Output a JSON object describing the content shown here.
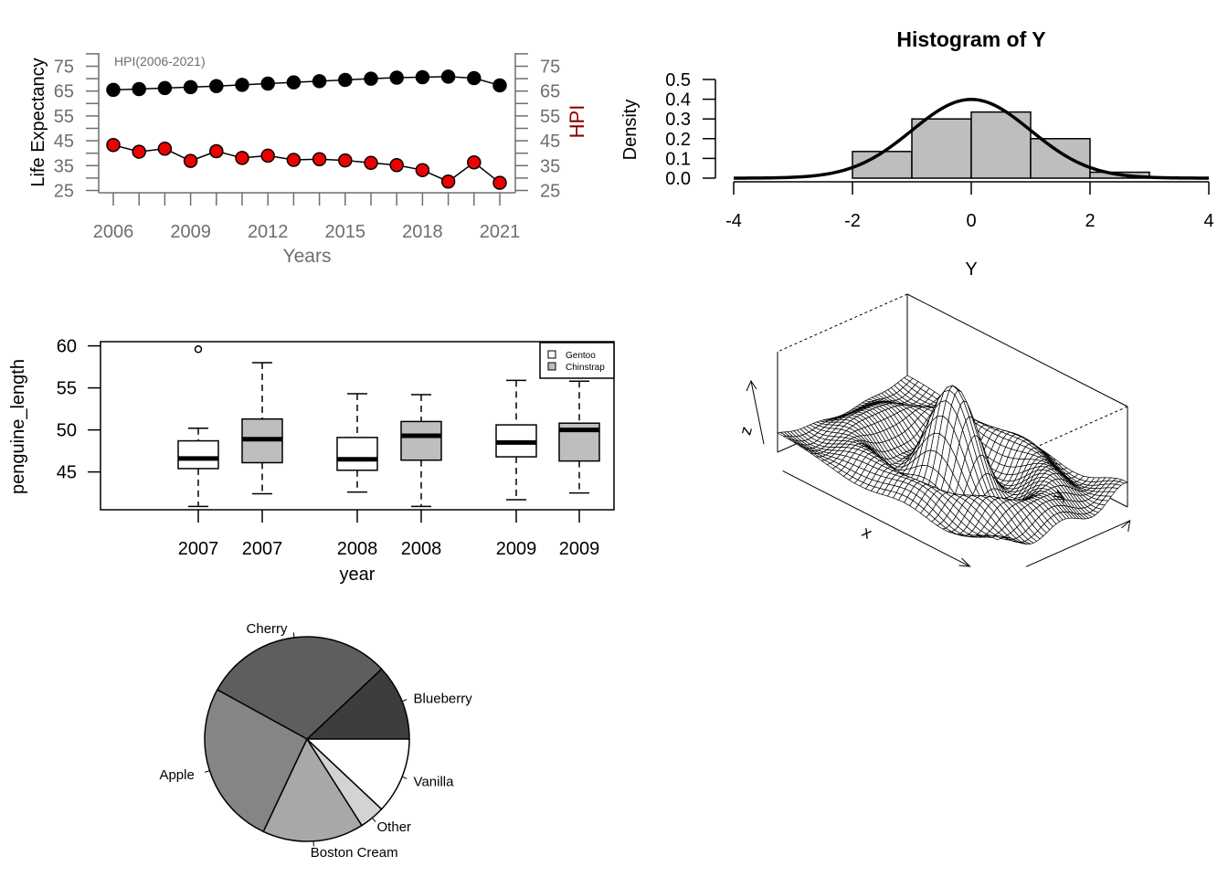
{
  "chart_data": [
    {
      "type": "line",
      "annotation": "HPI(2006-2021)",
      "xlabel": "Years",
      "ylabel": "Life Expectancy",
      "ylabel_right": "HPI",
      "xlim": [
        2006,
        2021
      ],
      "ylim": [
        25,
        75
      ],
      "xticks": [
        "2006",
        "2009",
        "2012",
        "2015",
        "2018",
        "2021"
      ],
      "yticks": [
        "25",
        "35",
        "45",
        "55",
        "65",
        "75"
      ],
      "yticks_right": [
        "25",
        "35",
        "45",
        "55",
        "65",
        "75"
      ],
      "x": [
        2006,
        2007,
        2008,
        2009,
        2010,
        2011,
        2012,
        2013,
        2014,
        2015,
        2016,
        2017,
        2018,
        2019,
        2020,
        2021
      ],
      "series": [
        {
          "values": [
            65.5,
            65.8,
            66.2,
            66.6,
            67.0,
            67.5,
            68.0,
            68.5,
            69.0,
            69.5,
            70.0,
            70.4,
            70.6,
            70.8,
            70.2,
            67.3
          ],
          "color": "#000000",
          "axis": "left"
        },
        {
          "values": [
            43.3,
            40.6,
            41.8,
            36.9,
            40.8,
            38.1,
            39.0,
            37.3,
            37.6,
            37.1,
            36.1,
            35.2,
            33.2,
            28.6,
            36.3,
            28.1
          ],
          "color": "#ee0000",
          "axis": "right"
        }
      ],
      "grid": false
    },
    {
      "type": "histogram",
      "title": "Histogram of Y",
      "xlabel": "Y",
      "ylabel": "Density",
      "xlim": [
        -4,
        4
      ],
      "ylim": [
        0,
        0.5
      ],
      "xticks": [
        "-4",
        "-2",
        "0",
        "2",
        "4"
      ],
      "yticks": [
        "0.0",
        "0.1",
        "0.2",
        "0.3",
        "0.4",
        "0.5"
      ],
      "bins": [
        {
          "from": -2,
          "to": -1,
          "density": 0.135
        },
        {
          "from": -1,
          "to": 0,
          "density": 0.3
        },
        {
          "from": 0,
          "to": 1,
          "density": 0.335
        },
        {
          "from": 1,
          "to": 2,
          "density": 0.2
        },
        {
          "from": 2,
          "to": 3,
          "density": 0.03
        }
      ],
      "curve": "normal density (mean 0, sd 1)",
      "bar_color": "#bebebe"
    },
    {
      "type": "boxplot",
      "xlabel": "year",
      "ylabel": "penguine_length",
      "ylim": [
        40.5,
        60.5
      ],
      "yticks": [
        "45",
        "50",
        "55",
        "60"
      ],
      "categories": [
        "2007",
        "2007",
        "2008",
        "2008",
        "2009",
        "2009"
      ],
      "legend": {
        "position": "top-right",
        "entries": [
          {
            "label": "Gentoo",
            "color": "#ffffff"
          },
          {
            "label": "Chinstrap",
            "color": "#bebebe"
          }
        ]
      },
      "boxes": [
        {
          "group": "Gentoo",
          "min": 40.9,
          "q1": 45.4,
          "median": 46.6,
          "q3": 48.7,
          "max": 50.2,
          "outliers": [
            59.6
          ],
          "fill": "#ffffff"
        },
        {
          "group": "Chinstrap",
          "min": 42.4,
          "q1": 46.1,
          "median": 48.9,
          "q3": 51.3,
          "max": 58.0,
          "outliers": [],
          "fill": "#bebebe"
        },
        {
          "group": "Gentoo",
          "min": 42.6,
          "q1": 45.2,
          "median": 46.5,
          "q3": 49.1,
          "max": 54.3,
          "outliers": [],
          "fill": "#ffffff"
        },
        {
          "group": "Chinstrap",
          "min": 40.9,
          "q1": 46.4,
          "median": 49.3,
          "q3": 51.0,
          "max": 54.2,
          "outliers": [],
          "fill": "#bebebe"
        },
        {
          "group": "Gentoo",
          "min": 41.7,
          "q1": 46.8,
          "median": 48.5,
          "q3": 50.6,
          "max": 55.9,
          "outliers": [],
          "fill": "#ffffff"
        },
        {
          "group": "Chinstrap",
          "min": 42.5,
          "q1": 46.3,
          "median": 50.0,
          "q3": 50.8,
          "max": 55.8,
          "outliers": [],
          "fill": "#bebebe"
        }
      ]
    },
    {
      "type": "surface3d",
      "xlabel": "x",
      "ylabel": "y",
      "zlabel": "z",
      "surface": "sinc-like radial ripple, wireframe"
    },
    {
      "type": "pie",
      "labels": [
        "Blueberry",
        "Cherry",
        "Apple",
        "Boston Cream",
        "Other",
        "Vanilla"
      ],
      "values": [
        12,
        30,
        26,
        16,
        4,
        12
      ],
      "colors": [
        "#3d3d3d",
        "#5e5e5e",
        "#858585",
        "#a8a8a8",
        "#d3d3d3",
        "#ffffff"
      ]
    }
  ]
}
